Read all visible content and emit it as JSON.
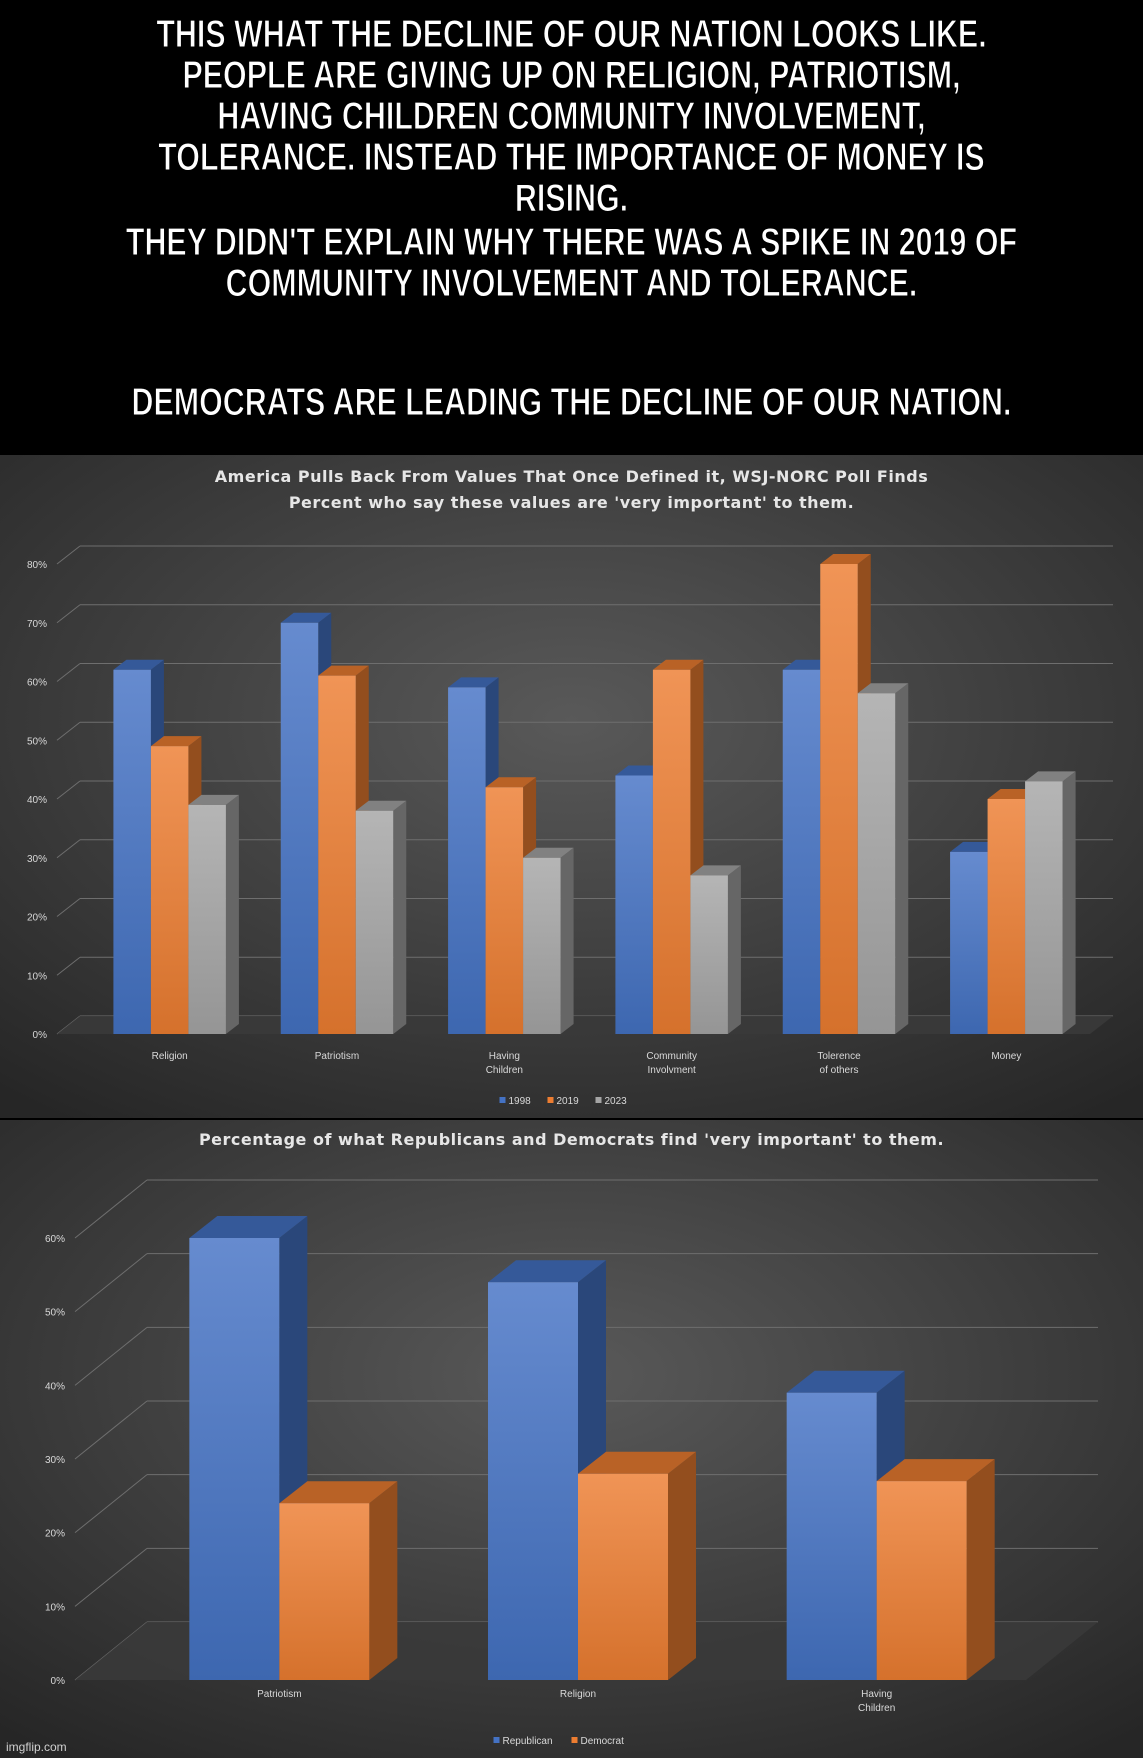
{
  "captions": {
    "line1": "THIS WHAT THE DECLINE OF OUR NATION LOOKS LIKE.  PEOPLE ARE GIVING UP ON RELIGION, PATRIOTISM, HAVING CHILDREN COMMUNITY INVOLVEMENT, TOLERANCE.  INSTEAD THE IMPORTANCE OF MONEY IS RISING.",
    "line2": "THEY DIDN'T EXPLAIN WHY THERE WAS A SPIKE IN 2019 OF COMMUNITY INVOLVEMENT AND TOLERANCE.",
    "line3": "DEMOCRATS ARE LEADING THE DECLINE OF OUR NATION."
  },
  "watermark": "imgflip.com",
  "colors": {
    "blue": "#4472c4",
    "orange": "#ed7d31",
    "gray": "#a5a5a5"
  },
  "chart_data": [
    {
      "type": "bar",
      "title": "America Pulls Back From Values That Once Defined it, WSJ-NORC Poll Finds",
      "subtitle": "Percent who say these values are 'very important' to them.",
      "categories": [
        [
          "Religion"
        ],
        [
          "Patriotism"
        ],
        [
          "Having",
          "Children"
        ],
        [
          "Community",
          "Involvment"
        ],
        [
          "Tolerence",
          "of others"
        ],
        [
          "Money"
        ]
      ],
      "series": [
        {
          "name": "1998",
          "color": "#4472c4",
          "values": [
            62,
            70,
            59,
            44,
            62,
            31
          ]
        },
        {
          "name": "2019",
          "color": "#ed7d31",
          "values": [
            49,
            61,
            42,
            62,
            80,
            40
          ]
        },
        {
          "name": "2023",
          "color": "#a5a5a5",
          "values": [
            39,
            38,
            30,
            27,
            58,
            43
          ]
        }
      ],
      "yticks": [
        "0%",
        "10%",
        "20%",
        "30%",
        "40%",
        "50%",
        "60%",
        "70%",
        "80%"
      ],
      "ylim": [
        0,
        80
      ],
      "grid": true,
      "legend": "bottom"
    },
    {
      "type": "bar",
      "title": "Percentage of what Republicans and Democrats find 'very important' to them.",
      "categories": [
        [
          "Patriotism"
        ],
        [
          "Religion"
        ],
        [
          "Having",
          "Children"
        ]
      ],
      "series": [
        {
          "name": "Republican",
          "color": "#4472c4",
          "values": [
            60,
            54,
            39
          ]
        },
        {
          "name": "Democrat",
          "color": "#ed7d31",
          "values": [
            24,
            28,
            27
          ]
        }
      ],
      "yticks": [
        "0%",
        "10%",
        "20%",
        "30%",
        "40%",
        "50%",
        "60%"
      ],
      "ylim": [
        0,
        60
      ],
      "grid": true,
      "legend": "bottom"
    }
  ]
}
